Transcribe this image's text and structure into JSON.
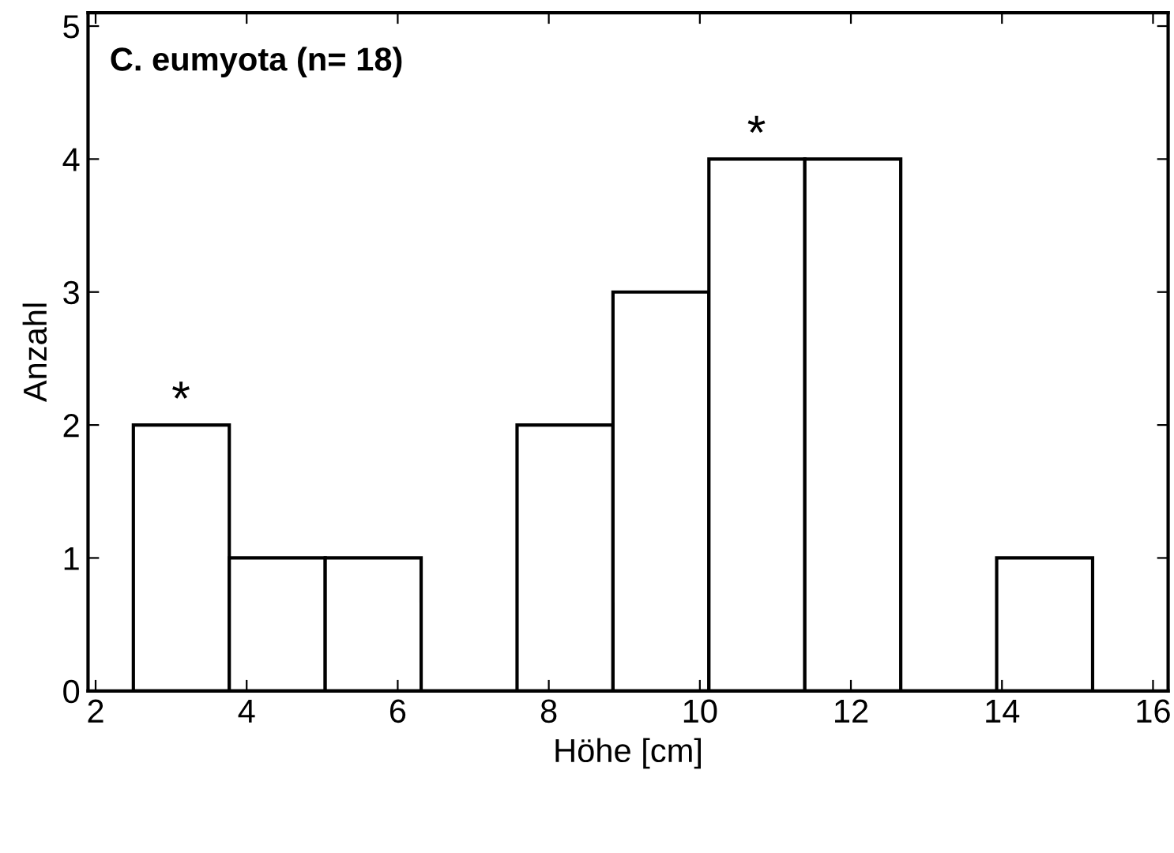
{
  "chart_data": {
    "type": "histogram",
    "title": "C. eumyota (n= 18)",
    "xlabel": "Höhe [cm]",
    "ylabel": "Anzahl",
    "bins": [
      2.5,
      3.77,
      5.04,
      6.31,
      7.58,
      8.85,
      10.12,
      11.39,
      12.66,
      13.93,
      15.2
    ],
    "values": [
      2,
      1,
      1,
      0,
      2,
      3,
      4,
      4,
      0,
      1
    ],
    "color": "#ffffff",
    "xlim": [
      1.9,
      16.2
    ],
    "ylim": [
      0,
      5.1
    ],
    "xticks": [
      2,
      4,
      6,
      8,
      10,
      12,
      14,
      16
    ],
    "yticks": [
      0,
      1,
      2,
      3,
      4,
      5
    ],
    "grid": false,
    "annotations": [
      {
        "text": "*",
        "x": 3.13,
        "y": 2
      },
      {
        "text": "*",
        "x": 10.75,
        "y": 4
      }
    ]
  }
}
